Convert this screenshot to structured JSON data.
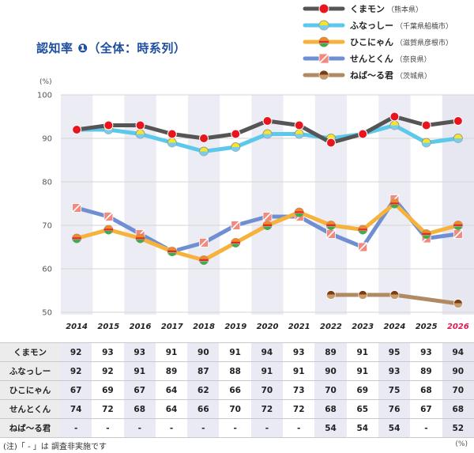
{
  "chart_data": {
    "type": "line",
    "title": "認知率 ❶（全体：時系列）",
    "ylabel": "(%)",
    "ylim": [
      45,
      100
    ],
    "yticks": [
      50,
      60,
      70,
      80,
      90,
      100
    ],
    "grid": true,
    "legend_position": "top-right",
    "categories": [
      "2014",
      "2015",
      "2016",
      "2017",
      "2018",
      "2019",
      "2020",
      "2021",
      "2022",
      "2023",
      "2024",
      "2025",
      "2026"
    ],
    "highlight_category": "2026",
    "series": [
      {
        "name": "くまモン",
        "region": "（熊本県）",
        "color": "#555555",
        "marker": "#e8141e",
        "values": [
          92,
          93,
          93,
          91,
          90,
          91,
          94,
          93,
          89,
          91,
          95,
          93,
          94
        ]
      },
      {
        "name": "ふなっしー",
        "region": "（千葉県船橋市）",
        "color": "#5cc8ec",
        "marker": "#f5e62a",
        "values": [
          92,
          92,
          91,
          89,
          87,
          88,
          91,
          91,
          90,
          91,
          93,
          89,
          90
        ]
      },
      {
        "name": "ひこにゃん",
        "region": "（滋賀県彦根市）",
        "color": "#f7b23b",
        "marker": "#ef8a28",
        "values": [
          67,
          69,
          67,
          64,
          62,
          66,
          70,
          73,
          70,
          69,
          75,
          68,
          70
        ]
      },
      {
        "name": "せんとくん",
        "region": "（奈良県）",
        "color": "#6f8fd2",
        "marker": "#f08a7e",
        "values": [
          74,
          72,
          68,
          64,
          66,
          70,
          72,
          72,
          68,
          65,
          76,
          67,
          68
        ]
      },
      {
        "name": "ねば～る君",
        "region": "（茨城県）",
        "color": "#b08a63",
        "marker": "#7a3e14",
        "values": [
          null,
          null,
          null,
          null,
          null,
          null,
          null,
          null,
          54,
          54,
          54,
          null,
          52
        ]
      }
    ]
  },
  "table": {
    "rows": [
      {
        "name": "くまモン",
        "cells": [
          "92",
          "93",
          "93",
          "91",
          "90",
          "91",
          "94",
          "93",
          "89",
          "91",
          "95",
          "93",
          "94"
        ]
      },
      {
        "name": "ふなっしー",
        "cells": [
          "92",
          "92",
          "91",
          "89",
          "87",
          "88",
          "91",
          "91",
          "90",
          "91",
          "93",
          "89",
          "90"
        ]
      },
      {
        "name": "ひこにゃん",
        "cells": [
          "67",
          "69",
          "67",
          "64",
          "62",
          "66",
          "70",
          "73",
          "70",
          "69",
          "75",
          "68",
          "70"
        ]
      },
      {
        "name": "せんとくん",
        "cells": [
          "74",
          "72",
          "68",
          "64",
          "66",
          "70",
          "72",
          "72",
          "68",
          "65",
          "76",
          "67",
          "68"
        ]
      },
      {
        "name": "ねば～る君",
        "cells": [
          "-",
          "-",
          "-",
          "-",
          "-",
          "-",
          "-",
          "-",
          "54",
          "54",
          "54",
          "-",
          "52"
        ]
      }
    ],
    "unit": "(%)"
  },
  "footnote": "(注)「 - 」は 調査非実施です"
}
